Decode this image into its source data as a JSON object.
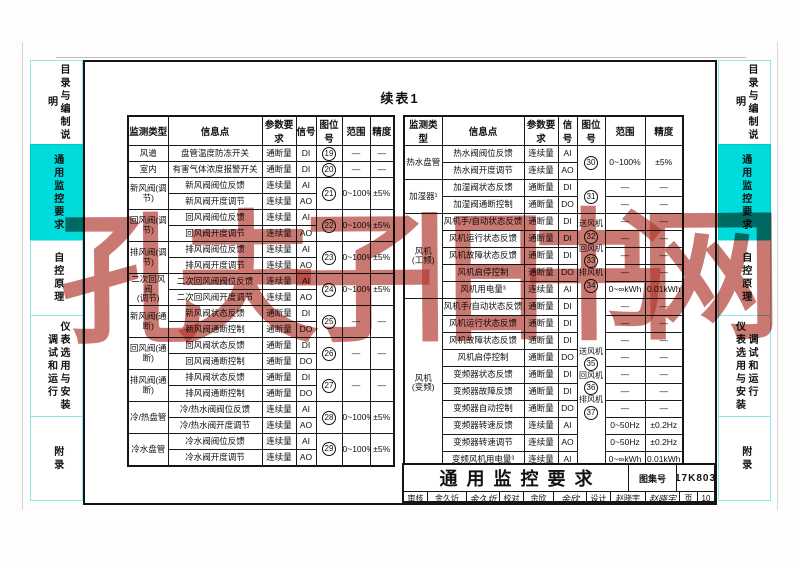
{
  "page": {
    "continued_table_label": "续表1",
    "watermark": "孔夫子旧书网",
    "watermark_color": "#b1392f",
    "active_tab_color": "#00dcdc"
  },
  "title_block": {
    "title": "通用监控要求",
    "atlas_no_label": "图集号",
    "atlas_no": "17K803",
    "review_label": "审核",
    "reviewer": "金久炘",
    "reviewer_signature": "金久炘",
    "check_label": "校对",
    "checker": "余欣",
    "checker_signature": "余欣",
    "design_label": "设计",
    "designer": "赵晓宇",
    "designer_signature": "赵晓宇",
    "page_label": "页",
    "page_number": "10"
  },
  "sidebar_left": {
    "tabs": [
      {
        "label": "目录与编制说明",
        "active": false
      },
      {
        "label": "通用监控要求",
        "active": true
      },
      {
        "label": "自控原理",
        "active": false
      },
      {
        "columns": [
          "仪表选用与安装",
          "调试和运行"
        ],
        "active": false
      },
      {
        "label": "附录",
        "active": false
      }
    ]
  },
  "sidebar_right": {
    "tabs": [
      {
        "label": "目录与编制说明",
        "active": false
      },
      {
        "label": "通用监控要求",
        "active": true
      },
      {
        "label": "自控原理",
        "active": false
      },
      {
        "columns": [
          "调试和运行",
          "仪表选用与安装"
        ],
        "active": false
      },
      {
        "label": "附录",
        "active": false
      }
    ]
  },
  "tables": {
    "left": {
      "columns": [
        "监测类型",
        "信息点",
        "参数要求",
        "信号",
        "图位号",
        "范围",
        "精度"
      ],
      "rows": [
        [
          {
            "t": "风道"
          },
          {
            "t": "盘管温度防冻开关"
          },
          {
            "t": "通断量"
          },
          {
            "t": "DI"
          },
          {
            "n": "19"
          },
          {
            "t": "—"
          },
          {
            "t": "—"
          }
        ],
        [
          {
            "t": "室内"
          },
          {
            "t": "有害气体浓度报警开关"
          },
          {
            "t": "通断量"
          },
          {
            "t": "DI"
          },
          {
            "n": "20"
          },
          {
            "t": "—"
          },
          {
            "t": "—"
          }
        ],
        [
          {
            "t": "新风阀(调节)",
            "rs": 2
          },
          {
            "t": "新风阀阀位反馈"
          },
          {
            "t": "连续量"
          },
          {
            "t": "AI"
          },
          {
            "n": "21",
            "rs": 2
          },
          {
            "t": "0~100%",
            "rs": 2
          },
          {
            "t": "±5%",
            "rs": 2
          }
        ],
        [
          {
            "t": "新风阀开度调节"
          },
          {
            "t": "连续量"
          },
          {
            "t": "AO"
          }
        ],
        [
          {
            "t": "回风阀(调节)",
            "rs": 2
          },
          {
            "t": "回风阀阀位反馈"
          },
          {
            "t": "连续量"
          },
          {
            "t": "AI"
          },
          {
            "n": "22",
            "rs": 2
          },
          {
            "t": "0~100%",
            "rs": 2
          },
          {
            "t": "±5%",
            "rs": 2
          }
        ],
        [
          {
            "t": "回风阀开度调节"
          },
          {
            "t": "连续量"
          },
          {
            "t": "AO"
          }
        ],
        [
          {
            "t": "排风阀(调节)",
            "rs": 2
          },
          {
            "t": "排风阀阀位反馈"
          },
          {
            "t": "连续量"
          },
          {
            "t": "AI"
          },
          {
            "n": "23",
            "rs": 2
          },
          {
            "t": "0~100%",
            "rs": 2
          },
          {
            "t": "±5%",
            "rs": 2
          }
        ],
        [
          {
            "t": "排风阀开度调节"
          },
          {
            "t": "连续量"
          },
          {
            "t": "AO"
          }
        ],
        [
          {
            "t": "二次回风阀\n(调节)",
            "rs": 2
          },
          {
            "t": "二次回风阀阀位反馈"
          },
          {
            "t": "连续量"
          },
          {
            "t": "AI"
          },
          {
            "n": "24",
            "rs": 2
          },
          {
            "t": "0~100%",
            "rs": 2
          },
          {
            "t": "±5%",
            "rs": 2
          }
        ],
        [
          {
            "t": "二次回风阀开度调节"
          },
          {
            "t": "连续量"
          },
          {
            "t": "AO"
          }
        ],
        [
          {
            "t": "新风阀(通断)",
            "rs": 2
          },
          {
            "t": "新风阀状态反馈"
          },
          {
            "t": "通断量"
          },
          {
            "t": "DI"
          },
          {
            "n": "25",
            "rs": 2
          },
          {
            "t": "—",
            "rs": 2
          },
          {
            "t": "—",
            "rs": 2
          }
        ],
        [
          {
            "t": "新风阀通断控制"
          },
          {
            "t": "通断量"
          },
          {
            "t": "DO"
          }
        ],
        [
          {
            "t": "回风阀(通断)",
            "rs": 2
          },
          {
            "t": "回风阀状态反馈"
          },
          {
            "t": "通断量"
          },
          {
            "t": "DI"
          },
          {
            "n": "26",
            "rs": 2
          },
          {
            "t": "—",
            "rs": 2
          },
          {
            "t": "—",
            "rs": 2
          }
        ],
        [
          {
            "t": "回风阀通断控制"
          },
          {
            "t": "通断量"
          },
          {
            "t": "DO"
          }
        ],
        [
          {
            "t": "排风阀(通断)",
            "rs": 2
          },
          {
            "t": "排风阀状态反馈"
          },
          {
            "t": "通断量"
          },
          {
            "t": "DI"
          },
          {
            "n": "27",
            "rs": 2
          },
          {
            "t": "—",
            "rs": 2
          },
          {
            "t": "—",
            "rs": 2
          }
        ],
        [
          {
            "t": "排风阀通断控制"
          },
          {
            "t": "通断量"
          },
          {
            "t": "DO"
          }
        ],
        [
          {
            "t": "冷/热盘管",
            "rs": 2
          },
          {
            "t": "冷/热水阀阀位反馈"
          },
          {
            "t": "连续量"
          },
          {
            "t": "AI"
          },
          {
            "n": "28",
            "rs": 2
          },
          {
            "t": "0~100%",
            "rs": 2
          },
          {
            "t": "±5%",
            "rs": 2
          }
        ],
        [
          {
            "t": "冷/热水阀开度调节"
          },
          {
            "t": "连续量"
          },
          {
            "t": "AO"
          }
        ],
        [
          {
            "t": "冷水盘管",
            "rs": 2
          },
          {
            "t": "冷水阀阀位反馈"
          },
          {
            "t": "连续量"
          },
          {
            "t": "AI"
          },
          {
            "n": "29",
            "rs": 2
          },
          {
            "t": "0~100%",
            "rs": 2
          },
          {
            "t": "±5%",
            "rs": 2
          }
        ],
        [
          {
            "t": "冷水阀开度调节"
          },
          {
            "t": "连续量"
          },
          {
            "t": "AO"
          }
        ]
      ]
    },
    "right": {
      "columns": [
        "监测类型",
        "信息点",
        "参数要求",
        "信号",
        "图位号",
        "范围",
        "精度"
      ],
      "rows": [
        [
          {
            "t": "热水盘管",
            "rs": 2
          },
          {
            "t": "热水阀阀位反馈"
          },
          {
            "t": "连续量"
          },
          {
            "t": "AI"
          },
          {
            "n": "30",
            "rs": 2
          },
          {
            "t": "0~100%",
            "rs": 2
          },
          {
            "t": "±5%",
            "rs": 2
          }
        ],
        [
          {
            "t": "热水阀开度调节"
          },
          {
            "t": "连续量"
          },
          {
            "t": "AO"
          }
        ],
        [
          {
            "t": "加湿器¹",
            "rs": 2
          },
          {
            "t": "加湿阀状态反馈"
          },
          {
            "t": "通断量"
          },
          {
            "t": "DI"
          },
          {
            "n": "31",
            "rs": 2
          },
          {
            "t": "—"
          },
          {
            "t": "—"
          }
        ],
        [
          {
            "t": "加湿阀通断控制"
          },
          {
            "t": "通断量"
          },
          {
            "t": "DO"
          },
          {
            "t": "—"
          },
          {
            "t": "—"
          }
        ],
        [
          {
            "t": "风机\n(工频)",
            "rs": 5
          },
          {
            "t": "风机手/自动状态反馈"
          },
          {
            "t": "通断量"
          },
          {
            "t": "DI"
          },
          {
            "pos": [
              "送风机",
              "32",
              "回风机",
              "33",
              "排风机",
              "34"
            ],
            "rs": 5
          },
          {
            "t": "—"
          },
          {
            "t": "—"
          }
        ],
        [
          {
            "t": "风机运行状态反馈"
          },
          {
            "t": "通断量"
          },
          {
            "t": "DI"
          },
          {
            "t": "—"
          },
          {
            "t": "—"
          }
        ],
        [
          {
            "t": "风机故障状态反馈"
          },
          {
            "t": "通断量"
          },
          {
            "t": "DI"
          },
          {
            "t": "—"
          },
          {
            "t": "—"
          }
        ],
        [
          {
            "t": "风机启停控制"
          },
          {
            "t": "通断量"
          },
          {
            "t": "DO"
          },
          {
            "t": "—"
          },
          {
            "t": "—"
          }
        ],
        [
          {
            "t": "风机用电量³"
          },
          {
            "t": "连续量"
          },
          {
            "t": "AI"
          },
          {
            "t": "0~∞kWh"
          },
          {
            "t": "0.01kWh"
          }
        ],
        [
          {
            "t": "风机\n(变频)",
            "rs": 10
          },
          {
            "t": "风机手/自动状态反馈"
          },
          {
            "t": "通断量"
          },
          {
            "t": "DI"
          },
          {
            "pos": [
              "送风机",
              "35",
              "回风机",
              "36",
              "排风机",
              "37"
            ],
            "rs": 10
          },
          {
            "t": "—"
          },
          {
            "t": "—"
          }
        ],
        [
          {
            "t": "风机运行状态反馈"
          },
          {
            "t": "通断量"
          },
          {
            "t": "DI"
          },
          {
            "t": "—"
          },
          {
            "t": "—"
          }
        ],
        [
          {
            "t": "风机故障状态反馈"
          },
          {
            "t": "通断量"
          },
          {
            "t": "DI"
          },
          {
            "t": "—"
          },
          {
            "t": "—"
          }
        ],
        [
          {
            "t": "风机启停控制"
          },
          {
            "t": "通断量"
          },
          {
            "t": "DO"
          },
          {
            "t": "—"
          },
          {
            "t": "—"
          }
        ],
        [
          {
            "t": "变频器状态反馈"
          },
          {
            "t": "通断量"
          },
          {
            "t": "DI"
          },
          {
            "t": "—"
          },
          {
            "t": "—"
          }
        ],
        [
          {
            "t": "变频器故障反馈"
          },
          {
            "t": "通断量"
          },
          {
            "t": "DI"
          },
          {
            "t": "—"
          },
          {
            "t": "—"
          }
        ],
        [
          {
            "t": "变频器自动控制"
          },
          {
            "t": "通断量"
          },
          {
            "t": "DO"
          },
          {
            "t": "—"
          },
          {
            "t": "—"
          }
        ],
        [
          {
            "t": "变频器转速反馈"
          },
          {
            "t": "连续量"
          },
          {
            "t": "AI"
          },
          {
            "t": "0~50Hz"
          },
          {
            "t": "±0.2Hz"
          }
        ],
        [
          {
            "t": "变频器转速调节"
          },
          {
            "t": "连续量"
          },
          {
            "t": "AO"
          },
          {
            "t": "0~50Hz"
          },
          {
            "t": "±0.2Hz"
          }
        ],
        [
          {
            "t": "变频风机用电量³"
          },
          {
            "t": "连续量"
          },
          {
            "t": "AI"
          },
          {
            "t": "0~∞kWh"
          },
          {
            "t": "0.01kWh"
          }
        ]
      ]
    }
  }
}
